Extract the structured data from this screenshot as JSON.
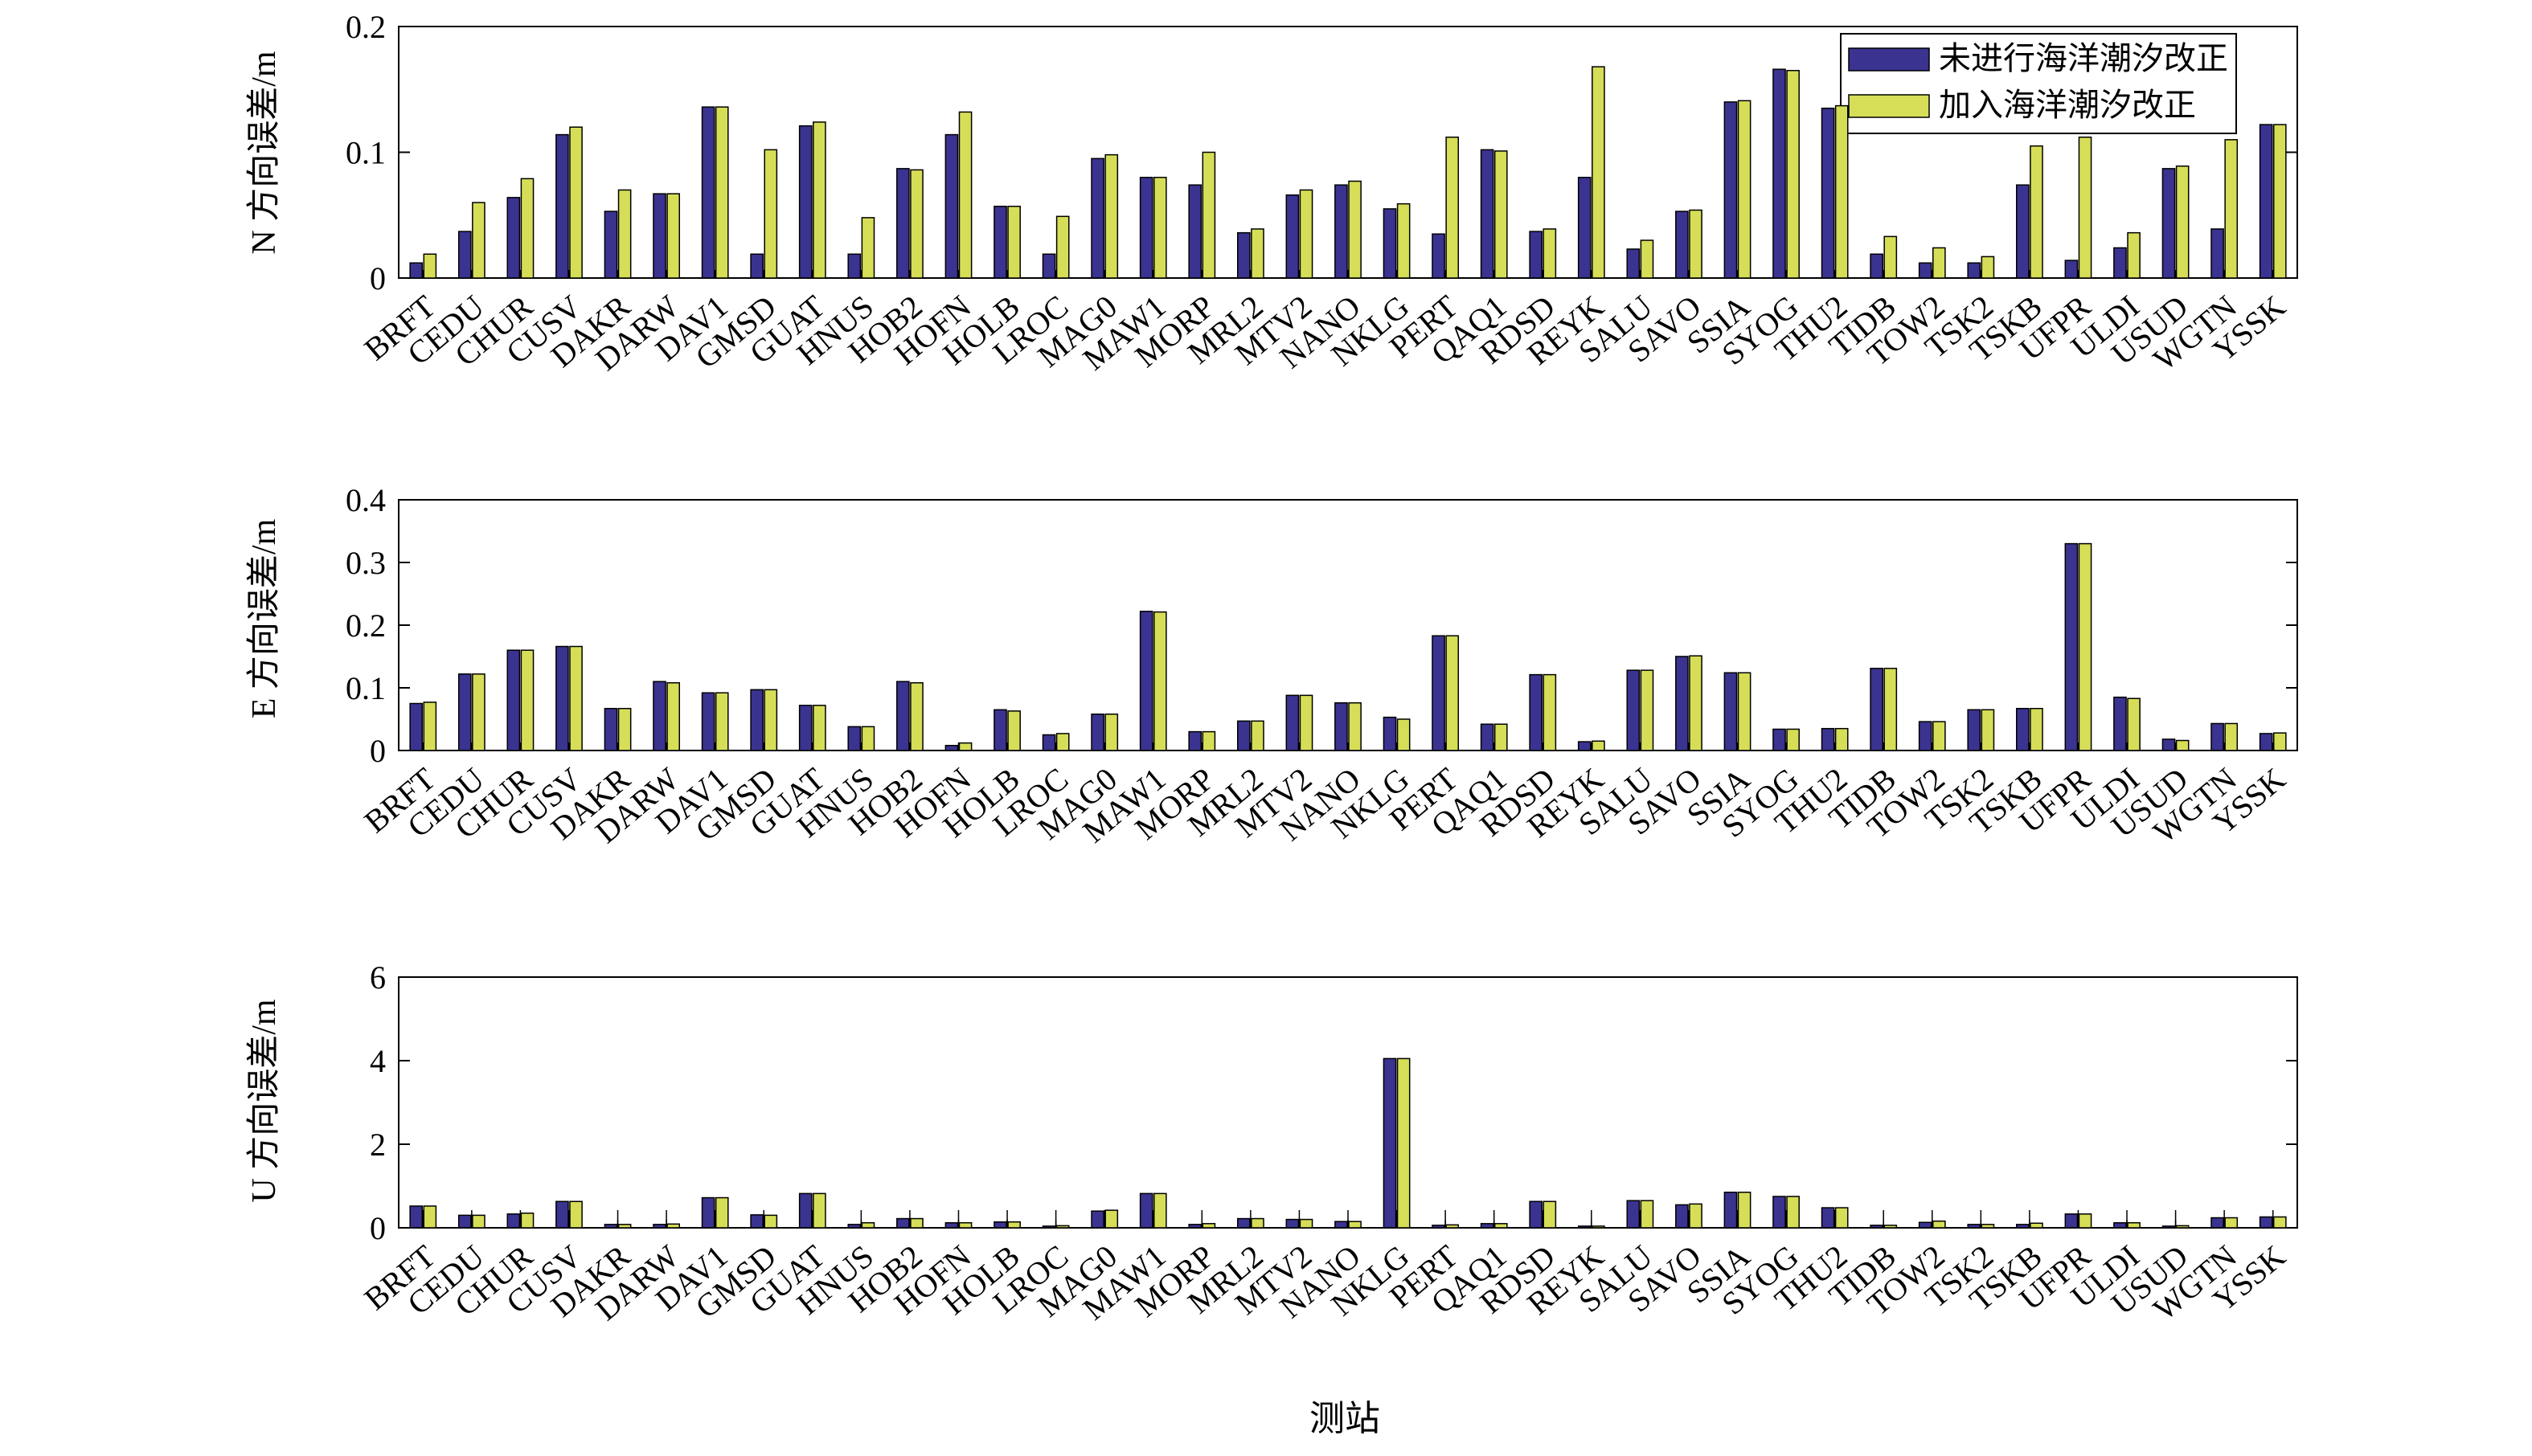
{
  "colors": {
    "series_a": "#3a3390",
    "series_b": "#d6de58",
    "axis": "#000000",
    "background": "#ffffff"
  },
  "chart_data": [
    {
      "type": "bar",
      "ylabel": "N 方向误差/m",
      "xlabel": "",
      "ylim": [
        0,
        0.2
      ],
      "yticks": [
        "0",
        "0.1",
        "0.2"
      ],
      "grid": false,
      "legend": "top-right",
      "categories": [
        "BRFT",
        "CEDU",
        "CHUR",
        "CUSV",
        "DAKR",
        "DARW",
        "DAV1",
        "GMSD",
        "GUAT",
        "HNUS",
        "HOB2",
        "HOFN",
        "HOLB",
        "LROC",
        "MAG0",
        "MAW1",
        "MORP",
        "MRL2",
        "MTV2",
        "NANO",
        "NKLG",
        "PERT",
        "QAQ1",
        "RDSD",
        "REYK",
        "SALU",
        "SAVO",
        "SSIA",
        "SYOG",
        "THU2",
        "TIDB",
        "TOW2",
        "TSK2",
        "TSKB",
        "UFPR",
        "ULDI",
        "USUD",
        "WGTN",
        "YSSK"
      ],
      "series": [
        {
          "name": "未进行海洋潮汐改正",
          "values": [
            0.012,
            0.037,
            0.064,
            0.114,
            0.053,
            0.067,
            0.136,
            0.019,
            0.121,
            0.019,
            0.087,
            0.114,
            0.057,
            0.019,
            0.095,
            0.08,
            0.074,
            0.036,
            0.066,
            0.074,
            0.055,
            0.035,
            0.102,
            0.037,
            0.08,
            0.023,
            0.053,
            0.14,
            0.166,
            0.135,
            0.019,
            0.012,
            0.012,
            0.074,
            0.014,
            0.024,
            0.087,
            0.039,
            0.122
          ]
        },
        {
          "name": "加入海洋潮汐改正",
          "values": [
            0.019,
            0.06,
            0.079,
            0.12,
            0.07,
            0.067,
            0.136,
            0.102,
            0.124,
            0.048,
            0.086,
            0.132,
            0.057,
            0.049,
            0.098,
            0.08,
            0.1,
            0.039,
            0.07,
            0.077,
            0.059,
            0.112,
            0.101,
            0.039,
            0.168,
            0.03,
            0.054,
            0.141,
            0.165,
            0.137,
            0.033,
            0.024,
            0.017,
            0.105,
            0.112,
            0.036,
            0.089,
            0.11,
            0.122
          ]
        }
      ]
    },
    {
      "type": "bar",
      "ylabel": "E 方向误差/m",
      "xlabel": "",
      "ylim": [
        0,
        0.4
      ],
      "yticks": [
        "0",
        "0.1",
        "0.2",
        "0.3",
        "0.4"
      ],
      "grid": false,
      "categories": [
        "BRFT",
        "CEDU",
        "CHUR",
        "CUSV",
        "DAKR",
        "DARW",
        "DAV1",
        "GMSD",
        "GUAT",
        "HNUS",
        "HOB2",
        "HOFN",
        "HOLB",
        "LROC",
        "MAG0",
        "MAW1",
        "MORP",
        "MRL2",
        "MTV2",
        "NANO",
        "NKLG",
        "PERT",
        "QAQ1",
        "RDSD",
        "REYK",
        "SALU",
        "SAVO",
        "SSIA",
        "SYOG",
        "THU2",
        "TIDB",
        "TOW2",
        "TSK2",
        "TSKB",
        "UFPR",
        "ULDI",
        "USUD",
        "WGTN",
        "YSSK"
      ],
      "series": [
        {
          "name": "未进行海洋潮汐改正",
          "values": [
            0.075,
            0.122,
            0.16,
            0.166,
            0.067,
            0.11,
            0.092,
            0.097,
            0.072,
            0.038,
            0.11,
            0.008,
            0.065,
            0.025,
            0.058,
            0.222,
            0.03,
            0.047,
            0.088,
            0.076,
            0.053,
            0.183,
            0.042,
            0.121,
            0.014,
            0.128,
            0.15,
            0.124,
            0.034,
            0.035,
            0.131,
            0.046,
            0.065,
            0.067,
            0.33,
            0.085,
            0.018,
            0.043,
            0.027
          ]
        },
        {
          "name": "加入海洋潮汐改正",
          "values": [
            0.077,
            0.122,
            0.16,
            0.166,
            0.067,
            0.108,
            0.092,
            0.097,
            0.072,
            0.038,
            0.108,
            0.012,
            0.063,
            0.027,
            0.058,
            0.221,
            0.03,
            0.047,
            0.088,
            0.076,
            0.05,
            0.183,
            0.042,
            0.121,
            0.015,
            0.128,
            0.151,
            0.124,
            0.034,
            0.035,
            0.131,
            0.046,
            0.065,
            0.067,
            0.33,
            0.083,
            0.016,
            0.043,
            0.028
          ]
        }
      ]
    },
    {
      "type": "bar",
      "ylabel": "U 方向误差/m",
      "xlabel": "测站",
      "ylim": [
        0,
        6
      ],
      "yticks": [
        "0",
        "2",
        "4",
        "6"
      ],
      "grid": false,
      "categories": [
        "BRFT",
        "CEDU",
        "CHUR",
        "CUSV",
        "DAKR",
        "DARW",
        "DAV1",
        "GMSD",
        "GUAT",
        "HNUS",
        "HOB2",
        "HOFN",
        "HOLB",
        "LROC",
        "MAG0",
        "MAW1",
        "MORP",
        "MRL2",
        "MTV2",
        "NANO",
        "NKLG",
        "PERT",
        "QAQ1",
        "RDSD",
        "REYK",
        "SALU",
        "SAVO",
        "SSIA",
        "SYOG",
        "THU2",
        "TIDB",
        "TOW2",
        "TSK2",
        "TSKB",
        "UFPR",
        "ULDI",
        "USUD",
        "WGTN",
        "YSSK"
      ],
      "series": [
        {
          "name": "未进行海洋潮汐改正",
          "values": [
            0.52,
            0.3,
            0.33,
            0.63,
            0.08,
            0.08,
            0.72,
            0.31,
            0.82,
            0.08,
            0.22,
            0.12,
            0.14,
            0.04,
            0.4,
            0.82,
            0.08,
            0.22,
            0.2,
            0.15,
            4.05,
            0.06,
            0.1,
            0.63,
            0.04,
            0.65,
            0.55,
            0.85,
            0.75,
            0.48,
            0.06,
            0.13,
            0.08,
            0.08,
            0.33,
            0.12,
            0.04,
            0.24,
            0.26
          ]
        },
        {
          "name": "加入海洋潮汐改正",
          "values": [
            0.52,
            0.3,
            0.35,
            0.63,
            0.08,
            0.09,
            0.72,
            0.3,
            0.82,
            0.12,
            0.22,
            0.12,
            0.14,
            0.05,
            0.42,
            0.82,
            0.1,
            0.22,
            0.2,
            0.15,
            4.05,
            0.07,
            0.1,
            0.63,
            0.04,
            0.65,
            0.57,
            0.85,
            0.75,
            0.48,
            0.06,
            0.16,
            0.08,
            0.11,
            0.33,
            0.12,
            0.05,
            0.24,
            0.26
          ]
        }
      ]
    }
  ]
}
